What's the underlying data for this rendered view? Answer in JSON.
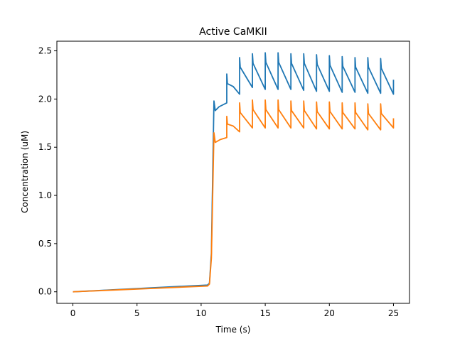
{
  "chart_data": {
    "type": "line",
    "title": "Active CaMKII",
    "xlabel": "Time (s)",
    "ylabel": "Concentration (uM)",
    "xlim": [
      -1.25,
      26.25
    ],
    "ylim": [
      -0.12,
      2.6
    ],
    "xticks": [
      0,
      5,
      10,
      15,
      20,
      25
    ],
    "xtick_labels": [
      "0",
      "5",
      "10",
      "15",
      "20",
      "25"
    ],
    "yticks": [
      0.0,
      0.5,
      1.0,
      1.5,
      2.0,
      2.5
    ],
    "ytick_labels": [
      "0.0",
      "0.5",
      "1.0",
      "1.5",
      "2.0",
      "2.5"
    ],
    "grid": false,
    "legend": "none",
    "series": [
      {
        "color": "#1f77b4",
        "points": [
          [
            0,
            0
          ],
          [
            10.5,
            0.07
          ],
          [
            10.65,
            0.09
          ],
          [
            10.8,
            0.4
          ],
          [
            10.9,
            1.2
          ],
          [
            11.0,
            1.98
          ],
          [
            11.1,
            1.88
          ],
          [
            11.4,
            1.92
          ],
          [
            12.0,
            1.96
          ],
          [
            12.0,
            2.26
          ],
          [
            12.05,
            2.16
          ],
          [
            12.5,
            2.13
          ],
          [
            13.0,
            2.05
          ],
          [
            13.0,
            2.43
          ],
          [
            13.05,
            2.33
          ],
          [
            14.0,
            2.12
          ],
          [
            14.0,
            2.47
          ],
          [
            14.05,
            2.37
          ],
          [
            15.0,
            2.1
          ],
          [
            15.0,
            2.48
          ],
          [
            15.05,
            2.38
          ],
          [
            16.0,
            2.1
          ],
          [
            16.0,
            2.48
          ],
          [
            16.05,
            2.38
          ],
          [
            17.0,
            2.1
          ],
          [
            17.0,
            2.47
          ],
          [
            17.05,
            2.37
          ],
          [
            18.0,
            2.09
          ],
          [
            18.0,
            2.47
          ],
          [
            18.05,
            2.37
          ],
          [
            19.0,
            2.08
          ],
          [
            19.0,
            2.46
          ],
          [
            19.05,
            2.36
          ],
          [
            20.0,
            2.08
          ],
          [
            20.0,
            2.45
          ],
          [
            20.05,
            2.35
          ],
          [
            21.0,
            2.07
          ],
          [
            21.0,
            2.44
          ],
          [
            21.05,
            2.34
          ],
          [
            22.0,
            2.07
          ],
          [
            22.0,
            2.43
          ],
          [
            22.05,
            2.33
          ],
          [
            23.0,
            2.06
          ],
          [
            23.0,
            2.43
          ],
          [
            23.05,
            2.33
          ],
          [
            24.0,
            2.06
          ],
          [
            24.0,
            2.42
          ],
          [
            24.05,
            2.32
          ],
          [
            25.0,
            2.05
          ],
          [
            25.0,
            2.2
          ]
        ]
      },
      {
        "color": "#ff7f0e",
        "points": [
          [
            0,
            0
          ],
          [
            10.5,
            0.06
          ],
          [
            10.65,
            0.08
          ],
          [
            10.8,
            0.35
          ],
          [
            10.9,
            1.0
          ],
          [
            11.0,
            1.65
          ],
          [
            11.1,
            1.55
          ],
          [
            11.5,
            1.58
          ],
          [
            12.0,
            1.6
          ],
          [
            12.0,
            1.82
          ],
          [
            12.05,
            1.74
          ],
          [
            12.5,
            1.72
          ],
          [
            13.0,
            1.66
          ],
          [
            13.0,
            1.96
          ],
          [
            13.05,
            1.86
          ],
          [
            14.0,
            1.7
          ],
          [
            14.0,
            1.99
          ],
          [
            14.05,
            1.89
          ],
          [
            15.0,
            1.7
          ],
          [
            15.0,
            1.99
          ],
          [
            15.05,
            1.89
          ],
          [
            16.0,
            1.7
          ],
          [
            16.0,
            1.99
          ],
          [
            16.05,
            1.89
          ],
          [
            17.0,
            1.7
          ],
          [
            17.0,
            1.98
          ],
          [
            17.05,
            1.88
          ],
          [
            18.0,
            1.7
          ],
          [
            18.0,
            1.98
          ],
          [
            18.05,
            1.88
          ],
          [
            19.0,
            1.69
          ],
          [
            19.0,
            1.97
          ],
          [
            19.05,
            1.87
          ],
          [
            20.0,
            1.69
          ],
          [
            20.0,
            1.97
          ],
          [
            20.05,
            1.87
          ],
          [
            21.0,
            1.69
          ],
          [
            21.0,
            1.96
          ],
          [
            21.05,
            1.86
          ],
          [
            22.0,
            1.69
          ],
          [
            22.0,
            1.96
          ],
          [
            22.05,
            1.86
          ],
          [
            23.0,
            1.68
          ],
          [
            23.0,
            1.95
          ],
          [
            23.05,
            1.85
          ],
          [
            24.0,
            1.68
          ],
          [
            24.0,
            1.95
          ],
          [
            24.05,
            1.85
          ],
          [
            25.0,
            1.7
          ],
          [
            25.0,
            1.8
          ]
        ]
      }
    ]
  }
}
